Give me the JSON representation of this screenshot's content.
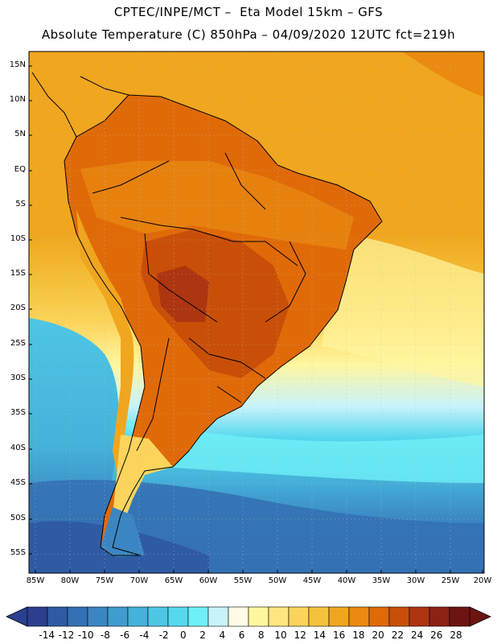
{
  "header": {
    "line1": "CPTEC/INPE/MCT –  Eta Model 15km – GFS",
    "line2": "Absolute Temperature (C) 850hPa – 04/09/2020 12UTC fct=219h"
  },
  "lat_labels": [
    "15N",
    "10N",
    "5N",
    "EQ",
    "5S",
    "10S",
    "15S",
    "20S",
    "25S",
    "30S",
    "35S",
    "40S",
    "45S",
    "50S",
    "55S"
  ],
  "lon_labels": [
    "85W",
    "80W",
    "75W",
    "70W",
    "65W",
    "60W",
    "55W",
    "50W",
    "45W",
    "40W",
    "35W",
    "30W",
    "25W",
    "20W"
  ],
  "colorbar": {
    "labels": [
      "-14",
      "-12",
      "-10",
      "-8",
      "-6",
      "-4",
      "-2",
      "0",
      "2",
      "4",
      "6",
      "8",
      "10",
      "12",
      "14",
      "16",
      "18",
      "20",
      "22",
      "24",
      "26",
      "28"
    ],
    "colors": [
      "#2b3f8e",
      "#2e5ba3",
      "#3471b4",
      "#3b86c2",
      "#3f9ccf",
      "#45b2da",
      "#4ec6e4",
      "#56d8ee",
      "#6ff0f6",
      "#c8f3fb",
      "#fffbe6",
      "#fff6a0",
      "#ffe680",
      "#fcd45c",
      "#f5c23c",
      "#f0a61e",
      "#ea8a10",
      "#e06a08",
      "#c94f08",
      "#ad3510",
      "#8c2214",
      "#6e1410"
    ]
  },
  "regions": {
    "ocean_north": "warm ocean",
    "continent": "South America",
    "ocean_south": "cold ocean"
  }
}
